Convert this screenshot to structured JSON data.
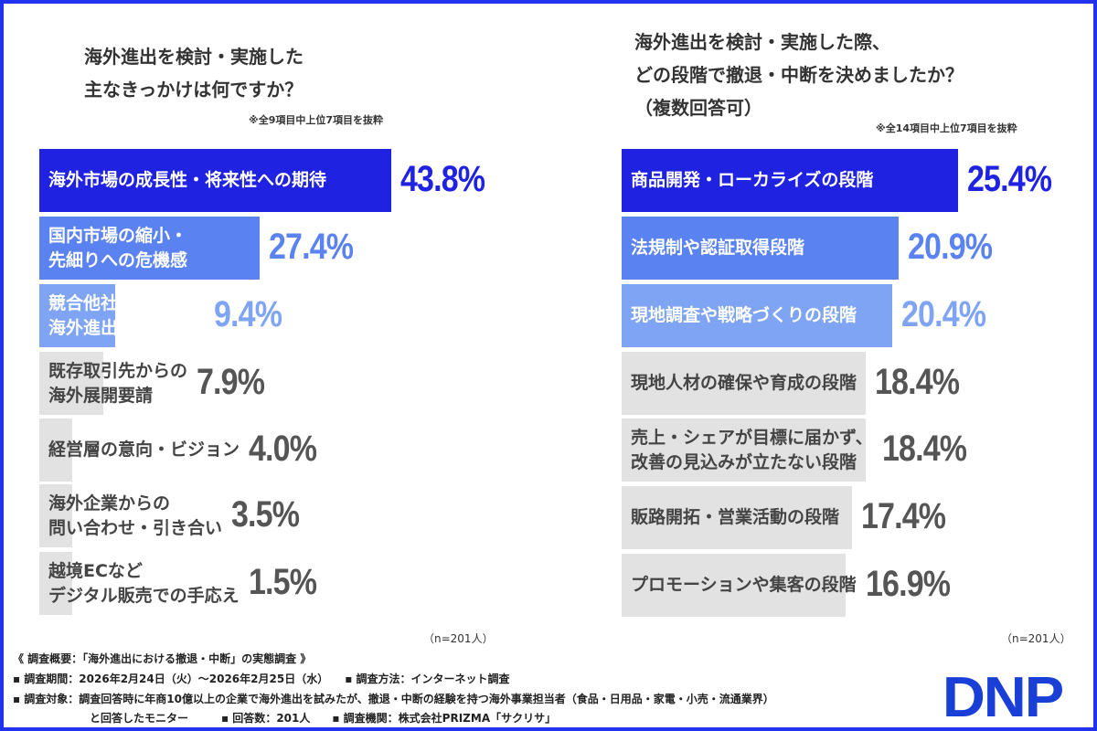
{
  "chart_data": [
    {
      "type": "bar",
      "orientation": "horizontal",
      "title": "海外進出を検討・実施した\n主なきっかけは何ですか？",
      "note": "※全9項目中上位7項目を抜粋",
      "sample": "（n=201人）",
      "categories": [
        "海外市場の成長性・将来性への期待",
        "国内市場の縮小・\n先細りへの危機感",
        "競合他社の\n海外進出状況の影響",
        "既存取引先からの\n海外展開要請",
        "経営層の意向・ビジョン",
        "海外企業からの\n問い合わせ・引き合い",
        "越境ECなど\nデジタル販売での手応え"
      ],
      "values": [
        43.8,
        27.4,
        9.4,
        7.9,
        4.0,
        3.5,
        1.5
      ],
      "labels": [
        "43.8%",
        "27.4%",
        "9.4%",
        "7.9%",
        "4.0%",
        "3.5%",
        "1.5%"
      ],
      "colors": [
        "#1f22e0",
        "#5a82f0",
        "#7ea4f3",
        "#e2e2e2",
        "#e2e2e2",
        "#e2e2e2",
        "#e2e2e2"
      ]
    },
    {
      "type": "bar",
      "orientation": "horizontal",
      "title": "海外進出を検討・実施した際、\nどの段階で撤退・中断を決めましたか？\n（複数回答可）",
      "note": "※全14項目中上位7項目を抜粋",
      "sample": "（n=201人）",
      "categories": [
        "商品開発・ローカライズの段階",
        "法規制や認証取得段階",
        "現地調査や戦略づくりの段階",
        "現地人材の確保や育成の段階",
        "売上・シェアが目標に届かず、\n改善の見込みが立たない段階",
        "販路開拓・営業活動の段階",
        "プロモーションや集客の段階"
      ],
      "values": [
        25.4,
        20.9,
        20.4,
        18.4,
        18.4,
        17.4,
        16.9
      ],
      "labels": [
        "25.4%",
        "20.9%",
        "20.4%",
        "18.4%",
        "18.4%",
        "17.4%",
        "16.9%"
      ],
      "colors": [
        "#1f22e0",
        "#5a82f0",
        "#7ea4f3",
        "#e2e2e2",
        "#e2e2e2",
        "#e2e2e2",
        "#e2e2e2"
      ]
    }
  ],
  "footer": {
    "l1": "《 調査概要：「海外進出における撤退・中断」の実態調査 》",
    "l2": "▪ 調査期間：2026年2月24日（火）〜2026年2月25日（水）　　▪ 調査方法：インターネット調査",
    "l3": "▪ 調査対象：調査回答時に年商10億以上の企業で海外進出を試みたが、撤退・中断の経験を持つ海外事業担当者（食品・日用品・家電・小売・流通業界）",
    "l4": "　　　　　　　と回答したモニター　　　▪ 回答数：201人　　▪ 調査機関：株式会社PRIZMA「サクリサ」"
  },
  "logo": "DNP"
}
